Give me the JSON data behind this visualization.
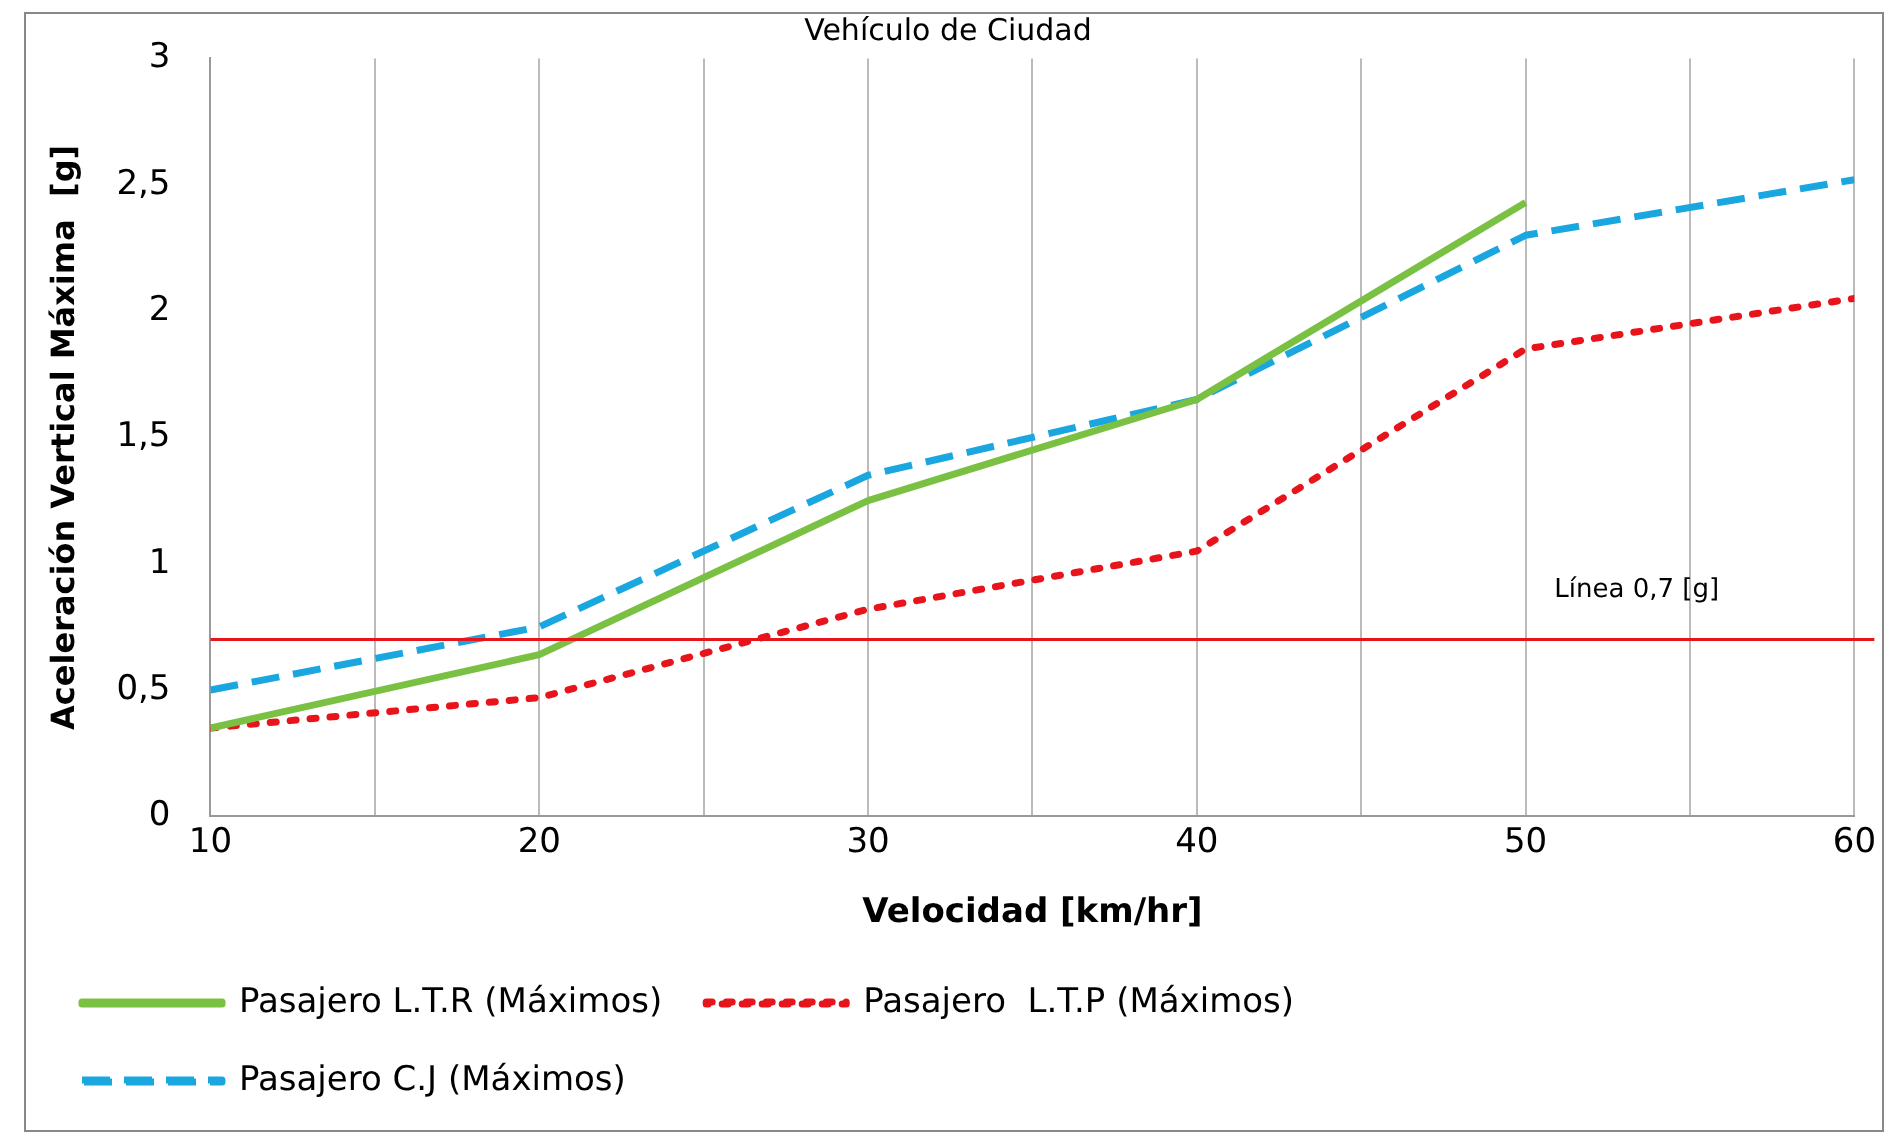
{
  "chart_data": {
    "type": "line",
    "title": "Vehículo de Ciudad",
    "xlabel": "Velocidad [km/hr]",
    "ylabel": "Aceleración Vertical Máxima  [g]",
    "x": [
      10,
      20,
      30,
      40,
      50,
      60
    ],
    "series": [
      {
        "name": "Pasajero L.T.R (Máximos)",
        "color": "#7ac143",
        "line_style": "solid",
        "values": [
          0.35,
          0.64,
          1.25,
          1.65,
          2.43,
          null
        ]
      },
      {
        "name": "Pasajero  L.T.P (Máximos)",
        "color": "#e8141b",
        "line_style": "dotted",
        "values": [
          0.35,
          0.47,
          0.82,
          1.05,
          1.85,
          2.05
        ]
      },
      {
        "name": "Pasajero C.J (Máximos)",
        "color": "#1aa7e0",
        "line_style": "dashed",
        "values": [
          0.5,
          0.75,
          1.35,
          1.65,
          2.3,
          2.52
        ]
      }
    ],
    "xlim": [
      10,
      60
    ],
    "xticks": [
      10,
      {
        "value": 15,
        "label": null
      },
      20,
      {
        "value": 25,
        "label": null
      },
      30,
      {
        "value": 35,
        "label": null
      },
      40,
      {
        "value": 45,
        "label": null
      },
      50,
      {
        "value": 55,
        "label": null
      },
      60
    ],
    "ylim": [
      0,
      3
    ],
    "yticks": [
      0,
      {
        "value": 0.5,
        "label": "0,5"
      },
      1,
      {
        "value": 1.5,
        "label": "1,5"
      },
      2,
      {
        "value": 2.5,
        "label": "2,5"
      },
      3
    ],
    "ref_lines": [
      {
        "axis": "y",
        "value": 0.7,
        "label": "Línea 0,7 [g]",
        "color": "#e8141b",
        "line_style": "solid"
      }
    ],
    "grid": "x",
    "legend": "bottom",
    "marker": "none"
  }
}
